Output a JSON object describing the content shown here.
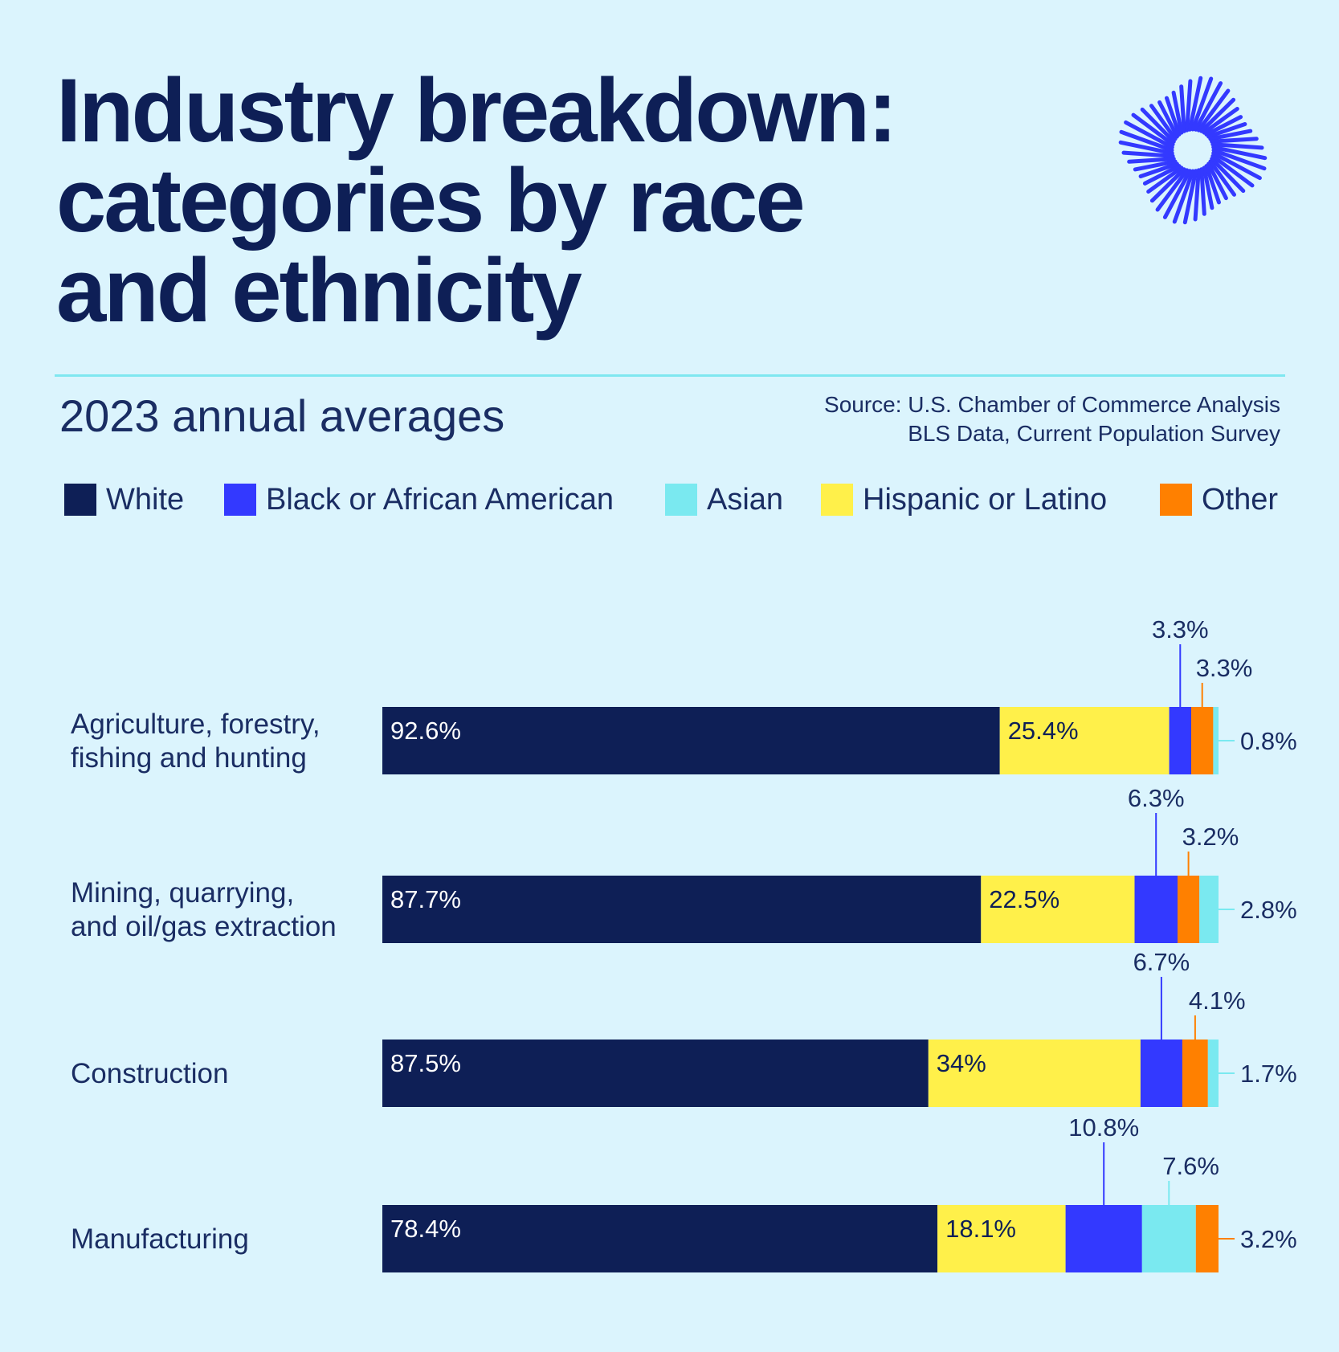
{
  "title": {
    "line1": "Industry breakdown:",
    "line2": "categories by race",
    "line3": "and ethnicity"
  },
  "subtitle": "2023 annual averages",
  "source": {
    "line1": "Source: U.S. Chamber of Commerce Analysis",
    "line2": "BLS Data, Current Population Survey"
  },
  "legend": [
    {
      "label": "White",
      "color": "#0e1f56"
    },
    {
      "label": "Black or African American",
      "color": "#3339ff"
    },
    {
      "label": "Asian",
      "color": "#7ae9f0"
    },
    {
      "label": "Hispanic or Latino",
      "color": "#fff04a"
    },
    {
      "label": "Other",
      "color": "#ff8000"
    }
  ],
  "logo_icon": "sunburst-logo-icon",
  "chart_data": {
    "type": "bar",
    "orientation": "horizontal",
    "stacked": true,
    "categories": [
      [
        "Agriculture, forestry,",
        "fishing and hunting"
      ],
      [
        "Mining, quarrying,",
        "and oil/gas extraction"
      ],
      [
        "Construction"
      ],
      [
        "Manufacturing"
      ]
    ],
    "series": [
      {
        "name": "White",
        "color": "#0e1f56",
        "values": [
          92.6,
          87.7,
          87.5,
          78.4
        ],
        "labels": [
          "92.6%",
          "87.7%",
          "87.5%",
          "78.4%"
        ]
      },
      {
        "name": "Hispanic or Latino",
        "color": "#fff04a",
        "values": [
          25.4,
          22.5,
          34,
          18.1
        ],
        "labels": [
          "25.4%",
          "22.5%",
          "34%",
          "18.1%"
        ]
      },
      {
        "name": "Black or African American",
        "color": "#3339ff",
        "values": [
          3.3,
          6.3,
          6.7,
          10.8
        ],
        "labels": [
          "3.3%",
          "6.3%",
          "6.7%",
          "10.8%"
        ]
      },
      {
        "name": "Asian",
        "color": "#7ae9f0",
        "values": [
          0.8,
          2.8,
          1.7,
          7.6
        ],
        "labels": [
          "0.8%",
          "2.8%",
          "1.7%",
          "7.6%"
        ]
      },
      {
        "name": "Other",
        "color": "#ff8000",
        "values": [
          3.3,
          3.2,
          4.1,
          3.2
        ],
        "labels": [
          "3.3%",
          "3.2%",
          "4.1%",
          "3.2%"
        ]
      }
    ],
    "segment_order": [
      [
        "White",
        "Hispanic or Latino",
        "Black or African American",
        "Other",
        "Asian"
      ],
      [
        "White",
        "Hispanic or Latino",
        "Black or African American",
        "Other",
        "Asian"
      ],
      [
        "White",
        "Hispanic or Latino",
        "Black or African American",
        "Other",
        "Asian"
      ],
      [
        "White",
        "Hispanic or Latino",
        "Black or African American",
        "Asian",
        "Other"
      ]
    ],
    "xlabel": "",
    "ylabel": "",
    "grid": false,
    "legend_position": "top-left"
  }
}
